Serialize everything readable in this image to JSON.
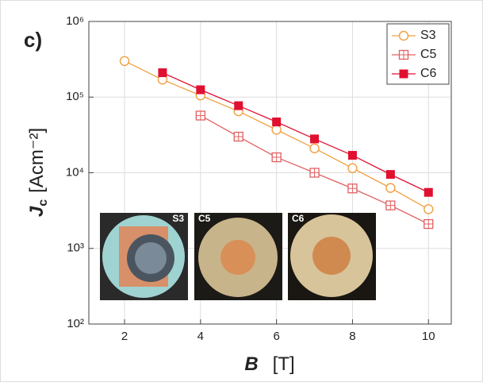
{
  "chart_data": {
    "type": "line",
    "panel_label": "c)",
    "x_label": {
      "symbol": "B",
      "unit": "[T]"
    },
    "y_label": {
      "symbol": "J",
      "subscript": "c",
      "unit": "[Acm⁻²]"
    },
    "x": [
      2,
      3,
      4,
      5,
      6,
      7,
      8,
      9,
      10
    ],
    "series": [
      {
        "name": "S3",
        "color": "#f0a040",
        "marker": "circle-open",
        "values": [
          300000,
          170000,
          105000,
          65000,
          37000,
          21000,
          11500,
          6300,
          3300
        ]
      },
      {
        "name": "C5",
        "color": "#e06060",
        "marker": "square-cross",
        "values": [
          null,
          null,
          57000,
          30000,
          16000,
          10000,
          6200,
          3700,
          2100
        ]
      },
      {
        "name": "C6",
        "color": "#e01030",
        "marker": "square-filled",
        "values": [
          null,
          210000,
          125000,
          77000,
          47000,
          28000,
          17000,
          9500,
          5500
        ]
      }
    ],
    "xlim": [
      1.06,
      10.6
    ],
    "xticks": [
      2,
      4,
      6,
      8,
      10
    ],
    "ylim": [
      100,
      1000000
    ],
    "log_y": true,
    "yticks": [
      {
        "value": 100,
        "label": "10²"
      },
      {
        "value": 1000,
        "label": "10³"
      },
      {
        "value": 10000,
        "label": "10⁴"
      },
      {
        "value": 100000,
        "label": "10⁵"
      },
      {
        "value": 1000000,
        "label": "10⁶"
      }
    ],
    "grid": true,
    "legend": "upper right",
    "insets": [
      "S3",
      "C5",
      "C6"
    ]
  }
}
